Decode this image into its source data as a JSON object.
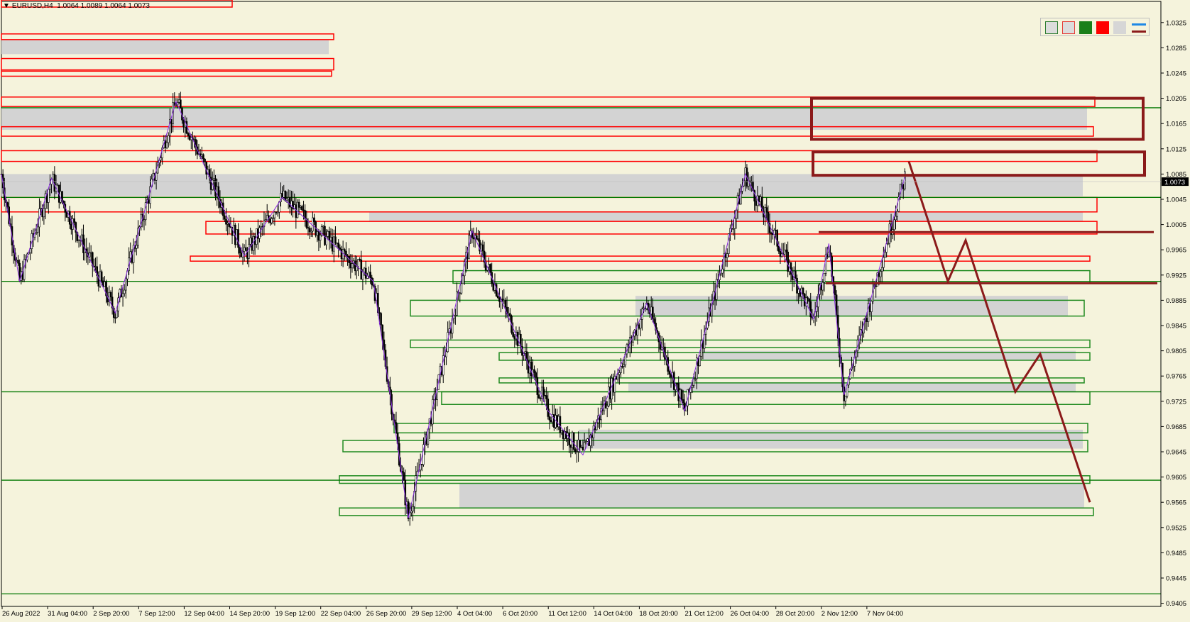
{
  "window": {
    "title": "EURUSD,H4",
    "ohlc": "1.0064 1.0089 1.0064 1.0073",
    "current_price_label": "1.0073"
  },
  "toolbar": {
    "palette_items": [
      "zone-green-outline",
      "zone-red-outline",
      "fill-green",
      "fill-red",
      "fill-grey",
      "line-colors"
    ]
  },
  "colors": {
    "background": "#f5f3dc",
    "support_zone": "#1f8a1f",
    "resistance_zone": "#ff0000",
    "zone_fill": "#d3d3d3",
    "projection": "#8b1a1a",
    "zigzag": "#8a2be2",
    "candle": "#000000",
    "hline": "#007700"
  },
  "chart_data": {
    "type": "candlestick",
    "symbol": "EURUSD",
    "timeframe": "H4",
    "ylim": [
      0.9395,
      1.0345
    ],
    "y_ticks": [
      "1.0325",
      "1.0285",
      "1.0245",
      "1.0205",
      "1.0165",
      "1.0125",
      "1.0085",
      "1.0045",
      "1.0005",
      "0.9965",
      "0.9925",
      "0.9885",
      "0.9845",
      "0.9805",
      "0.9765",
      "0.9725",
      "0.9685",
      "0.9645",
      "0.9605",
      "0.9565",
      "0.9525",
      "0.9485",
      "0.9445",
      "0.9405"
    ],
    "x_ticks": [
      "26 Aug 2022",
      "31 Aug 04:00",
      "2 Sep 20:00",
      "7 Sep 12:00",
      "12 Sep 04:00",
      "14 Sep 20:00",
      "19 Sep 12:00",
      "22 Sep 04:00",
      "26 Sep 20:00",
      "29 Sep 12:00",
      "4 Oct 04:00",
      "6 Oct 20:00",
      "11 Oct 12:00",
      "14 Oct 04:00",
      "18 Oct 20:00",
      "21 Oct 12:00",
      "26 Oct 04:00",
      "28 Oct 20:00",
      "2 Nov 12:00",
      "7 Nov 04:00"
    ],
    "zigzag": [
      [
        0,
        1.0085
      ],
      [
        12,
        0.9915
      ],
      [
        33,
        1.0078
      ],
      [
        75,
        0.9865
      ],
      [
        115,
        1.02
      ],
      [
        160,
        0.9955
      ],
      [
        185,
        1.0048
      ],
      [
        245,
        0.9915
      ],
      [
        268,
        0.954
      ],
      [
        310,
        0.9995
      ],
      [
        360,
        0.971
      ],
      [
        383,
        0.964
      ],
      [
        425,
        0.988
      ],
      [
        450,
        0.971
      ],
      [
        490,
        1.0085
      ],
      [
        535,
        0.9855
      ],
      [
        545,
        0.9975
      ],
      [
        555,
        0.9735
      ],
      [
        595,
        1.008
      ]
    ],
    "last_index": 595,
    "support_zones": [
      [
        0.9912,
        0.9932
      ],
      [
        0.986,
        0.9885
      ],
      [
        0.981,
        0.9822
      ],
      [
        0.979,
        0.9802
      ],
      [
        0.9755,
        0.9762
      ],
      [
        0.972,
        0.974
      ],
      [
        0.9675,
        0.969
      ],
      [
        0.9645,
        0.9663
      ],
      [
        0.9595,
        0.9607
      ],
      [
        0.9544,
        0.9556
      ]
    ],
    "resistance_zones": [
      [
        1.0298,
        1.0307
      ],
      [
        1.025,
        1.0268
      ],
      [
        1.024,
        1.0248
      ],
      [
        1.0192,
        1.0207
      ],
      [
        1.0145,
        1.016
      ],
      [
        1.0105,
        1.0122
      ],
      [
        1.0025,
        1.0048
      ],
      [
        0.999,
        1.001
      ],
      [
        0.9947,
        0.9955
      ]
    ],
    "grey_zones": [
      [
        1.0275,
        1.0298
      ],
      [
        1.0155,
        1.019
      ],
      [
        1.005,
        1.0085
      ],
      [
        1.001,
        1.0025
      ],
      [
        0.986,
        0.9892
      ],
      [
        0.979,
        0.9805
      ],
      [
        0.974,
        0.9755
      ],
      [
        0.965,
        0.968
      ],
      [
        0.9556,
        0.9595
      ]
    ],
    "hlines": [
      1.019,
      1.0048,
      0.9915,
      0.974,
      0.96,
      0.942
    ],
    "boxes": [
      [
        1.014,
        1.0205
      ],
      [
        1.0083,
        1.012
      ]
    ],
    "projection": [
      [
        1.0105,
        0
      ],
      [
        0.9915,
        1
      ],
      [
        0.998,
        2
      ],
      [
        0.974,
        3
      ],
      [
        0.98,
        4
      ],
      [
        0.9565,
        5
      ]
    ],
    "projection_levels": [
      0.9993,
      0.9912
    ]
  }
}
